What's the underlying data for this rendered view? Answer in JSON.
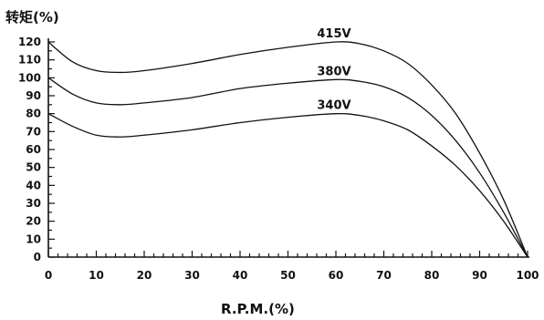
{
  "chart_data": {
    "type": "line",
    "ylabel": "转矩(%)",
    "xlabel": "R.P.M.(%)",
    "xlim": [
      0,
      100
    ],
    "ylim": [
      0,
      120
    ],
    "x_ticks": [
      "0",
      "10",
      "20",
      "30",
      "40",
      "50",
      "60",
      "70",
      "80",
      "90",
      "100"
    ],
    "y_ticks": [
      "0",
      "10",
      "20",
      "30",
      "40",
      "50",
      "60",
      "70",
      "80",
      "90",
      "100",
      "110",
      "120"
    ],
    "grid": false,
    "line_color": "#111111",
    "series": [
      {
        "name": "415V",
        "x": [
          0,
          5,
          10,
          15,
          20,
          30,
          40,
          50,
          60,
          65,
          70,
          75,
          80,
          85,
          90,
          95,
          100
        ],
        "y": [
          120,
          109,
          104,
          103,
          104,
          108,
          113,
          117,
          120,
          119,
          115,
          108,
          96,
          80,
          58,
          32,
          0
        ]
      },
      {
        "name": "380V",
        "x": [
          0,
          5,
          10,
          15,
          20,
          30,
          40,
          50,
          60,
          65,
          70,
          75,
          80,
          85,
          90,
          95,
          100
        ],
        "y": [
          100,
          91,
          86,
          85,
          86,
          89,
          94,
          97,
          99,
          98,
          95,
          89,
          79,
          65,
          47,
          25,
          0
        ]
      },
      {
        "name": "340V",
        "x": [
          0,
          5,
          10,
          15,
          20,
          30,
          40,
          50,
          60,
          65,
          70,
          75,
          80,
          85,
          90,
          95,
          100
        ],
        "y": [
          80,
          73,
          68,
          67,
          68,
          71,
          75,
          78,
          80,
          79,
          76,
          71,
          62,
          51,
          37,
          20,
          0
        ]
      }
    ]
  }
}
